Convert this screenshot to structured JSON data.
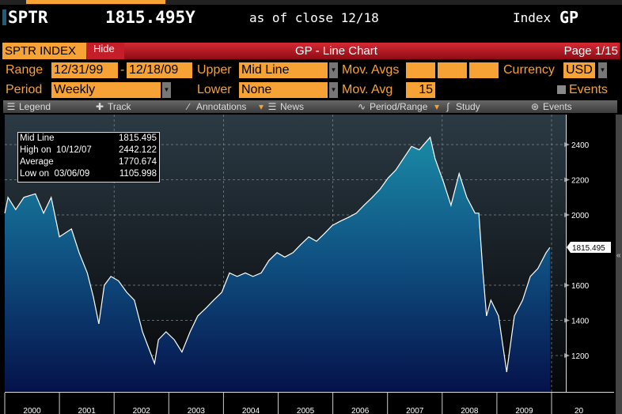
{
  "header": {
    "ticker": "SPTR",
    "price": "1815.495Y",
    "as_of": "as of close 12/18",
    "asset": "Index",
    "function": "GP"
  },
  "titlebar": {
    "security": "SPTR INDEX",
    "hide": "Hide",
    "title": "GP - Line Chart",
    "page": "Page 1/15"
  },
  "params": {
    "range_label": "Range",
    "start": "12/31/99",
    "dash": "-",
    "end": "12/18/09",
    "upper_label": "Upper",
    "upper": "Mid Line",
    "movavgs_label": "Mov. Avgs",
    "currency_label": "Currency",
    "currency": "USD",
    "period_label": "Period",
    "period": "Weekly",
    "lower_label": "Lower",
    "lower": "None",
    "movavg_label": "Mov. Avg",
    "movavg": "15",
    "events_label": "Events"
  },
  "toolbar": {
    "legend": "Legend",
    "track": "Track",
    "annotations": "Annotations",
    "news": "News",
    "period_range": "Period/Range",
    "study": "Study",
    "events": "Events"
  },
  "legend": {
    "mid_label": "Mid Line",
    "mid_val": "1815.495",
    "high_label": "High on  10/12/07",
    "high_val": "2442.122",
    "avg_label": "Average",
    "avg_val": "1770.674",
    "low_label": "Low on  03/06/09",
    "low_val": "1105.998"
  },
  "colors": {
    "accent": "#f7a234",
    "red": "#c41e2a",
    "line": "#ffffff"
  },
  "chart_data": {
    "type": "area",
    "series_name": "SPTR INDEX",
    "last_label": "1815.495",
    "ylim": [
      1000,
      2560
    ],
    "yticks": [
      "1200",
      "1400",
      "1600",
      "2000",
      "2200",
      "2400"
    ],
    "xlim": [
      2000,
      2010.25
    ],
    "xticks": [
      "2000",
      "2001",
      "2002",
      "2003",
      "2004",
      "2005",
      "2006",
      "2007",
      "2008",
      "2009",
      "20"
    ],
    "points": [
      [
        2000.0,
        2009
      ],
      [
        2000.06,
        2100
      ],
      [
        2000.2,
        2030
      ],
      [
        2000.35,
        2100
      ],
      [
        2000.56,
        2120
      ],
      [
        2000.71,
        2010
      ],
      [
        2000.85,
        2100
      ],
      [
        2001.0,
        1875
      ],
      [
        2001.22,
        1920
      ],
      [
        2001.36,
        1785
      ],
      [
        2001.51,
        1670
      ],
      [
        2001.62,
        1535
      ],
      [
        2001.72,
        1380
      ],
      [
        2001.82,
        1600
      ],
      [
        2001.94,
        1650
      ],
      [
        2002.08,
        1625
      ],
      [
        2002.23,
        1560
      ],
      [
        2002.37,
        1515
      ],
      [
        2002.52,
        1335
      ],
      [
        2002.63,
        1245
      ],
      [
        2002.74,
        1155
      ],
      [
        2002.81,
        1290
      ],
      [
        2002.95,
        1335
      ],
      [
        2003.1,
        1290
      ],
      [
        2003.24,
        1220
      ],
      [
        2003.39,
        1335
      ],
      [
        2003.53,
        1425
      ],
      [
        2003.68,
        1470
      ],
      [
        2003.82,
        1515
      ],
      [
        2003.97,
        1560
      ],
      [
        2004.11,
        1670
      ],
      [
        2004.25,
        1650
      ],
      [
        2004.4,
        1670
      ],
      [
        2004.54,
        1650
      ],
      [
        2004.69,
        1670
      ],
      [
        2004.83,
        1740
      ],
      [
        2004.98,
        1785
      ],
      [
        2005.12,
        1760
      ],
      [
        2005.27,
        1785
      ],
      [
        2005.41,
        1830
      ],
      [
        2005.56,
        1875
      ],
      [
        2005.7,
        1850
      ],
      [
        2005.85,
        1895
      ],
      [
        2005.99,
        1940
      ],
      [
        2006.14,
        1965
      ],
      [
        2006.28,
        1985
      ],
      [
        2006.43,
        2010
      ],
      [
        2006.57,
        2055
      ],
      [
        2006.72,
        2100
      ],
      [
        2006.86,
        2145
      ],
      [
        2007.01,
        2210
      ],
      [
        2007.15,
        2255
      ],
      [
        2007.29,
        2320
      ],
      [
        2007.44,
        2390
      ],
      [
        2007.58,
        2370
      ],
      [
        2007.78,
        2442
      ],
      [
        2007.87,
        2320
      ],
      [
        2008.02,
        2190
      ],
      [
        2008.16,
        2055
      ],
      [
        2008.31,
        2235
      ],
      [
        2008.45,
        2100
      ],
      [
        2008.6,
        2010
      ],
      [
        2008.67,
        2010
      ],
      [
        2008.74,
        1695
      ],
      [
        2008.81,
        1425
      ],
      [
        2008.89,
        1515
      ],
      [
        2009.03,
        1425
      ],
      [
        2009.18,
        1106
      ],
      [
        2009.32,
        1425
      ],
      [
        2009.47,
        1515
      ],
      [
        2009.61,
        1650
      ],
      [
        2009.75,
        1695
      ],
      [
        2009.9,
        1785
      ],
      [
        2009.97,
        1815
      ]
    ]
  }
}
